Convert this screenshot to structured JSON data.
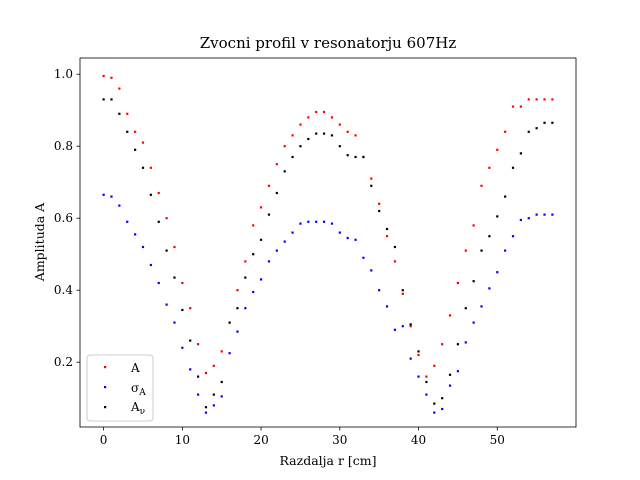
{
  "chart_data": {
    "type": "scatter",
    "title": "Zvocni profil v resonatorju 607Hz",
    "xlabel": "Razdalja r [cm]",
    "ylabel": "Amplituda A",
    "xlim": [
      -3,
      60
    ],
    "ylim": [
      0.02,
      1.045
    ],
    "xticks": [
      0,
      10,
      20,
      30,
      40,
      50
    ],
    "xtick_labels": [
      "0",
      "10",
      "20",
      "30",
      "40",
      "50"
    ],
    "yticks": [
      0.2,
      0.4,
      0.6,
      0.8,
      1.0
    ],
    "ytick_labels": [
      "0.2",
      "0.4",
      "0.6",
      "0.8",
      "1.0"
    ],
    "grid": false,
    "legend_position": "lower-left",
    "colors": {
      "A": "#ff0000",
      "sigma": "#0000ff",
      "Anu": "#000000"
    },
    "x": [
      0,
      1,
      2,
      3,
      4,
      5,
      6,
      7,
      8,
      9,
      10,
      11,
      12,
      13,
      14,
      15,
      16,
      17,
      18,
      19,
      20,
      21,
      22,
      23,
      24,
      25,
      26,
      27,
      28,
      29,
      30,
      31,
      32,
      33,
      34,
      35,
      36,
      37,
      38,
      39,
      40,
      41,
      42,
      43,
      44,
      45,
      46,
      47,
      48,
      49,
      50,
      51,
      52,
      53,
      54,
      55,
      56,
      57
    ],
    "series": [
      {
        "name": "A",
        "color_key": "A",
        "values": [
          0.995,
          0.99,
          0.96,
          0.89,
          0.84,
          0.81,
          0.74,
          0.67,
          0.6,
          0.52,
          0.42,
          0.35,
          0.25,
          0.17,
          0.19,
          0.23,
          0.31,
          0.4,
          0.48,
          0.58,
          0.63,
          0.69,
          0.75,
          0.8,
          0.83,
          0.86,
          0.88,
          0.895,
          0.895,
          0.88,
          0.86,
          0.84,
          0.83,
          0.77,
          0.71,
          0.64,
          0.55,
          0.48,
          0.39,
          0.3,
          0.22,
          0.16,
          0.19,
          0.25,
          0.33,
          0.42,
          0.51,
          0.58,
          0.69,
          0.74,
          0.79,
          0.84,
          0.91,
          0.91,
          0.93,
          0.93,
          0.93,
          0.93
        ]
      },
      {
        "name": "σ_A",
        "color_key": "sigma",
        "values": [
          0.665,
          0.66,
          0.635,
          0.59,
          0.555,
          0.52,
          0.47,
          0.42,
          0.36,
          0.31,
          0.24,
          0.18,
          0.11,
          0.06,
          0.08,
          0.105,
          0.225,
          0.285,
          0.35,
          0.395,
          0.43,
          0.48,
          0.51,
          0.535,
          0.56,
          0.585,
          0.59,
          0.59,
          0.59,
          0.585,
          0.56,
          0.545,
          0.54,
          0.49,
          0.455,
          0.4,
          0.355,
          0.29,
          0.3,
          0.21,
          0.16,
          0.11,
          0.06,
          0.07,
          0.135,
          0.175,
          0.255,
          0.31,
          0.355,
          0.405,
          0.45,
          0.51,
          0.55,
          0.595,
          0.6,
          0.61,
          0.61,
          0.61
        ]
      },
      {
        "name": "A_ν",
        "color_key": "Anu",
        "values": [
          0.93,
          0.93,
          0.89,
          0.84,
          0.79,
          0.74,
          0.665,
          0.59,
          0.51,
          0.435,
          0.345,
          0.26,
          0.16,
          0.075,
          0.11,
          0.145,
          0.31,
          0.35,
          0.435,
          0.5,
          0.54,
          0.61,
          0.67,
          0.73,
          0.77,
          0.8,
          0.82,
          0.835,
          0.835,
          0.83,
          0.8,
          0.775,
          0.77,
          0.77,
          0.69,
          0.62,
          0.57,
          0.52,
          0.4,
          0.305,
          0.23,
          0.145,
          0.085,
          0.1,
          0.165,
          0.25,
          0.35,
          0.425,
          0.51,
          0.55,
          0.605,
          0.66,
          0.74,
          0.78,
          0.84,
          0.85,
          0.865,
          0.865
        ]
      }
    ]
  }
}
